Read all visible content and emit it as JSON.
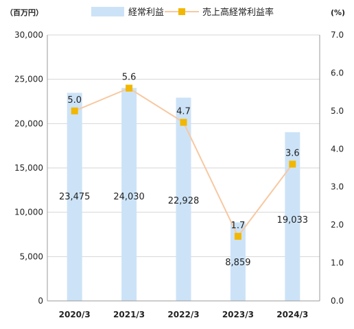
{
  "chart_data": {
    "type": "bar",
    "categories": [
      "2020/3",
      "2021/3",
      "2022/3",
      "2023/3",
      "2024/3"
    ],
    "series": [
      {
        "name": "経常利益",
        "type": "bar",
        "axis": "left",
        "values": [
          23475,
          24030,
          22928,
          8859,
          19033
        ],
        "labels": [
          "23,475",
          "24,030",
          "22,928",
          "8,859",
          "19,033"
        ],
        "color": "#cce3f7"
      },
      {
        "name": "売上高経常利益率",
        "type": "line",
        "axis": "right",
        "values": [
          5.0,
          5.6,
          4.7,
          1.7,
          3.6
        ],
        "labels": [
          "5.0",
          "5.6",
          "4.7",
          "1.7",
          "3.6"
        ],
        "color": "#f2b700",
        "line_color": "#f7c8a0"
      }
    ],
    "left_axis": {
      "unit": "（百万円）",
      "ylim": [
        0,
        30000
      ],
      "ticks": [
        0,
        5000,
        10000,
        15000,
        20000,
        25000,
        30000
      ],
      "tick_labels": [
        "0",
        "5,000",
        "10,000",
        "15,000",
        "20,000",
        "25,000",
        "30,000"
      ]
    },
    "right_axis": {
      "unit": "(%)",
      "ylim": [
        0,
        7
      ],
      "ticks": [
        0,
        1,
        2,
        3,
        4,
        5,
        6,
        7
      ],
      "tick_labels": [
        "0.0",
        "1.0",
        "2.0",
        "3.0",
        "4.0",
        "5.0",
        "6.0",
        "7.0"
      ]
    },
    "grid": true,
    "legend": "top-center"
  }
}
